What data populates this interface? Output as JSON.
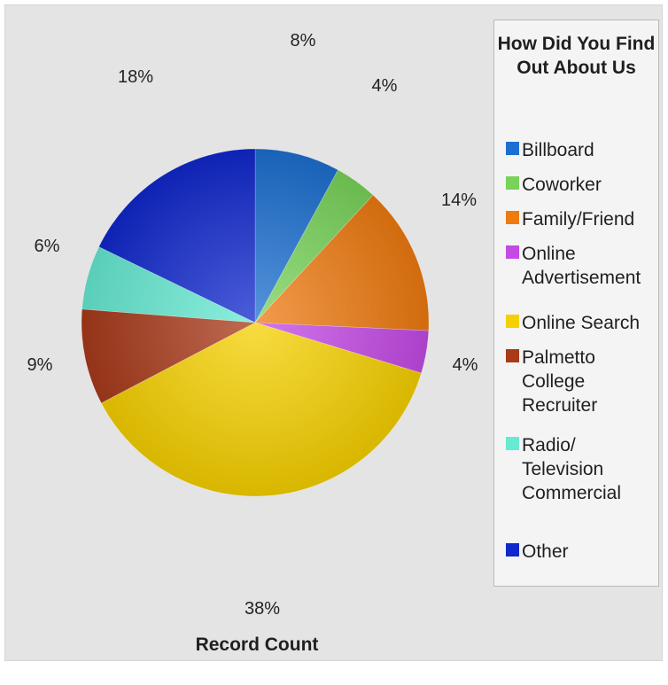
{
  "chart_data": {
    "type": "pie",
    "title": "How Did You Find Out About Us",
    "xlabel": "Record Count",
    "categories": [
      "Billboard",
      "Coworker",
      "Family/Friend",
      "Online\nAdvertisement",
      "Online Search",
      "Palmetto\nCollege\nRecruiter",
      "Radio/\nTelevision\nCommercial",
      "Other"
    ],
    "values": [
      8,
      4,
      14,
      4,
      38,
      9,
      6,
      18
    ],
    "value_labels": [
      "8%",
      "4%",
      "14%",
      "4%",
      "38%",
      "9%",
      "6%",
      "18%"
    ],
    "colors": [
      "#1c6fd0",
      "#78d35a",
      "#ee7a10",
      "#c44ae6",
      "#f5d000",
      "#a83a1a",
      "#66ead2",
      "#1028cc"
    ],
    "legend_placement": "right"
  }
}
